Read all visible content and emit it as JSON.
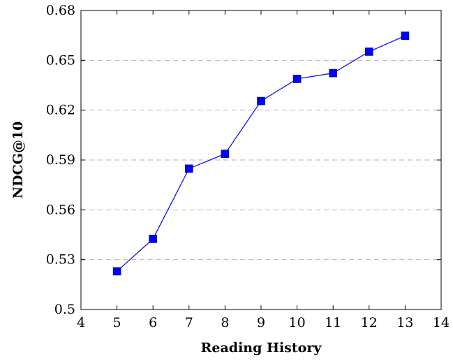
{
  "chart_data": {
    "type": "line",
    "xlabel": "Reading History",
    "ylabel": "NDCG@10",
    "xlim": [
      4,
      14
    ],
    "ylim": [
      0.5,
      0.68
    ],
    "xticks": [
      "4",
      "5",
      "6",
      "7",
      "8",
      "9",
      "10",
      "11",
      "12",
      "13",
      "14"
    ],
    "yticks": [
      "0.5",
      "0.53",
      "0.56",
      "0.59",
      "0.62",
      "0.65",
      "0.68"
    ],
    "grid": "horizontal dashed",
    "series": [
      {
        "color": "#0000ff",
        "marker": "square",
        "points": [
          {
            "x": 5,
            "y": 0.523
          },
          {
            "x": 6,
            "y": 0.5425
          },
          {
            "x": 7,
            "y": 0.5848
          },
          {
            "x": 8,
            "y": 0.5937
          },
          {
            "x": 9,
            "y": 0.6255
          },
          {
            "x": 10,
            "y": 0.6388
          },
          {
            "x": 11,
            "y": 0.6423
          },
          {
            "x": 12,
            "y": 0.6552
          },
          {
            "x": 13,
            "y": 0.6648
          }
        ]
      }
    ]
  }
}
